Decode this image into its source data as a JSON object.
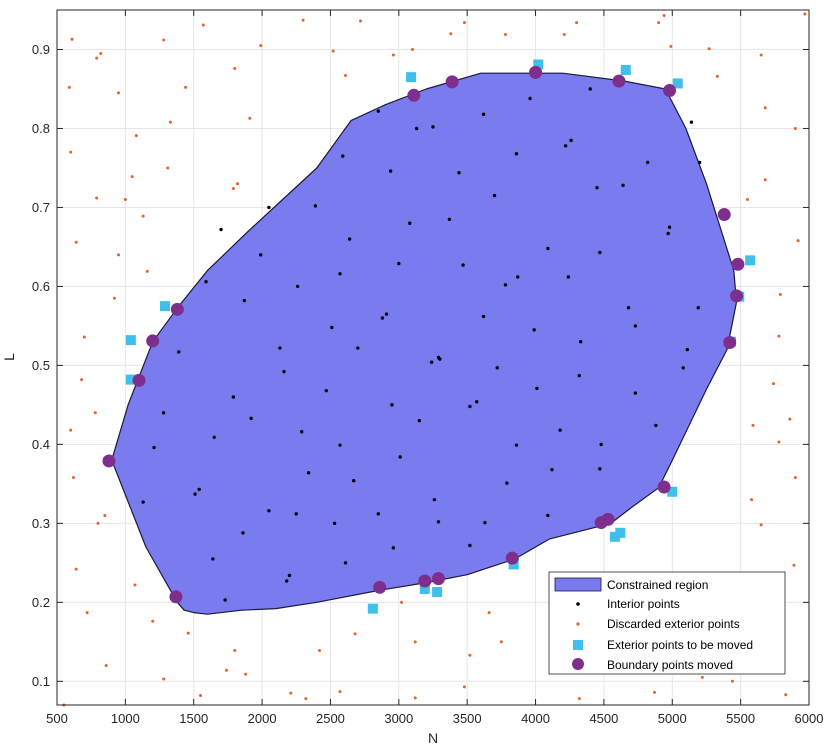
{
  "chart_data": {
    "type": "scatter",
    "title": "",
    "xlabel": "N",
    "ylabel": "L",
    "xlim": [
      500,
      6000
    ],
    "ylim": [
      0.07,
      0.95
    ],
    "xticks": [
      500,
      1000,
      1500,
      2000,
      2500,
      3000,
      3500,
      4000,
      4500,
      5000,
      5500,
      6000
    ],
    "yticks": [
      0.1,
      0.2,
      0.3,
      0.4,
      0.5,
      0.6,
      0.7,
      0.8,
      0.9
    ],
    "grid": true,
    "legend_position": "bottom-right",
    "legend": [
      "Constrained region",
      "Interior points",
      "Discarded exterior points",
      "Exterior points to be moved",
      "Boundary points moved"
    ],
    "colors": {
      "region_fill": "#7b7bf0",
      "region_edge": "#1a1a3a",
      "interior": "#000000",
      "discarded": "#e8602a",
      "exterior_moved": "#3fbfe9",
      "boundary": "#7e2f8e",
      "grid": "#e6e6e6",
      "axes": "#262626"
    },
    "region": [
      [
        1500,
        0.187
      ],
      [
        1430,
        0.19
      ],
      [
        1380,
        0.2
      ],
      [
        1150,
        0.27
      ],
      [
        900,
        0.38
      ],
      [
        1020,
        0.45
      ],
      [
        1200,
        0.53
      ],
      [
        1390,
        0.575
      ],
      [
        1600,
        0.62
      ],
      [
        1900,
        0.67
      ],
      [
        2150,
        0.71
      ],
      [
        2400,
        0.75
      ],
      [
        2650,
        0.81
      ],
      [
        2900,
        0.83
      ],
      [
        3200,
        0.85
      ],
      [
        3600,
        0.87
      ],
      [
        4000,
        0.87
      ],
      [
        4200,
        0.87
      ],
      [
        4650,
        0.86
      ],
      [
        4950,
        0.85
      ],
      [
        5100,
        0.8
      ],
      [
        5250,
        0.73
      ],
      [
        5450,
        0.62
      ],
      [
        5470,
        0.58
      ],
      [
        5400,
        0.52
      ],
      [
        5250,
        0.47
      ],
      [
        5000,
        0.38
      ],
      [
        4900,
        0.345
      ],
      [
        4700,
        0.32
      ],
      [
        4550,
        0.3
      ],
      [
        4100,
        0.28
      ],
      [
        3850,
        0.255
      ],
      [
        3500,
        0.235
      ],
      [
        3200,
        0.225
      ],
      [
        2850,
        0.215
      ],
      [
        2400,
        0.2
      ],
      [
        2100,
        0.192
      ],
      [
        1850,
        0.19
      ],
      [
        1600,
        0.185
      ]
    ],
    "interior_points": [
      [
        2850,
        0.822
      ],
      [
        3130,
        0.8
      ],
      [
        3250,
        0.802
      ],
      [
        2590,
        0.765
      ],
      [
        2940,
        0.746
      ],
      [
        3440,
        0.744
      ],
      [
        3620,
        0.818
      ],
      [
        3960,
        0.838
      ],
      [
        4220,
        0.778
      ],
      [
        4260,
        0.785
      ],
      [
        3860,
        0.768
      ],
      [
        2390,
        0.702
      ],
      [
        2050,
        0.7
      ],
      [
        3080,
        0.68
      ],
      [
        3370,
        0.685
      ],
      [
        3700,
        0.715
      ],
      [
        4450,
        0.725
      ],
      [
        4640,
        0.728
      ],
      [
        4820,
        0.757
      ],
      [
        5200,
        0.757
      ],
      [
        5140,
        0.808
      ],
      [
        4400,
        0.85
      ],
      [
        1700,
        0.672
      ],
      [
        2640,
        0.66
      ],
      [
        1990,
        0.64
      ],
      [
        4090,
        0.648
      ],
      [
        4470,
        0.643
      ],
      [
        4970,
        0.667
      ],
      [
        3000,
        0.629
      ],
      [
        3470,
        0.627
      ],
      [
        4240,
        0.612
      ],
      [
        3870,
        0.612
      ],
      [
        1590,
        0.606
      ],
      [
        2570,
        0.616
      ],
      [
        2260,
        0.6
      ],
      [
        1870,
        0.582
      ],
      [
        3780,
        0.602
      ],
      [
        4980,
        0.675
      ],
      [
        2880,
        0.56
      ],
      [
        2910,
        0.565
      ],
      [
        3620,
        0.562
      ],
      [
        4680,
        0.573
      ],
      [
        2510,
        0.548
      ],
      [
        5190,
        0.573
      ],
      [
        1390,
        0.517
      ],
      [
        2130,
        0.522
      ],
      [
        3300,
        0.508
      ],
      [
        3290,
        0.51
      ],
      [
        3240,
        0.504
      ],
      [
        3990,
        0.545
      ],
      [
        4330,
        0.53
      ],
      [
        4730,
        0.55
      ],
      [
        2700,
        0.522
      ],
      [
        5080,
        0.497
      ],
      [
        5110,
        0.52
      ],
      [
        2160,
        0.492
      ],
      [
        4320,
        0.487
      ],
      [
        3720,
        0.497
      ],
      [
        1790,
        0.46
      ],
      [
        2470,
        0.468
      ],
      [
        2950,
        0.45
      ],
      [
        3520,
        0.448
      ],
      [
        3570,
        0.454
      ],
      [
        4010,
        0.471
      ],
      [
        4730,
        0.465
      ],
      [
        1280,
        0.44
      ],
      [
        1920,
        0.433
      ],
      [
        4180,
        0.418
      ],
      [
        3150,
        0.43
      ],
      [
        1650,
        0.409
      ],
      [
        2290,
        0.416
      ],
      [
        2570,
        0.399
      ],
      [
        3010,
        0.384
      ],
      [
        3860,
        0.399
      ],
      [
        4480,
        0.4
      ],
      [
        4880,
        0.424
      ],
      [
        1210,
        0.396
      ],
      [
        2340,
        0.364
      ],
      [
        2670,
        0.354
      ],
      [
        3790,
        0.351
      ],
      [
        4120,
        0.368
      ],
      [
        4470,
        0.369
      ],
      [
        1510,
        0.337
      ],
      [
        1540,
        0.343
      ],
      [
        3260,
        0.33
      ],
      [
        1130,
        0.327
      ],
      [
        2050,
        0.316
      ],
      [
        2250,
        0.312
      ],
      [
        2850,
        0.312
      ],
      [
        3290,
        0.302
      ],
      [
        3630,
        0.301
      ],
      [
        4090,
        0.31
      ],
      [
        1860,
        0.288
      ],
      [
        2530,
        0.3
      ],
      [
        3520,
        0.272
      ],
      [
        1640,
        0.255
      ],
      [
        2610,
        0.25
      ],
      [
        2960,
        0.269
      ],
      [
        2180,
        0.227
      ],
      [
        2200,
        0.234
      ],
      [
        1730,
        0.203
      ]
    ],
    "discarded_points": [
      [
        610,
        0.913
      ],
      [
        590,
        0.852
      ],
      [
        600,
        0.77
      ],
      [
        790,
        0.889
      ],
      [
        820,
        0.895
      ],
      [
        950,
        0.845
      ],
      [
        1280,
        0.912
      ],
      [
        1570,
        0.931
      ],
      [
        1990,
        0.905
      ],
      [
        2300,
        0.937
      ],
      [
        2720,
        0.936
      ],
      [
        2520,
        0.898
      ],
      [
        2960,
        0.893
      ],
      [
        3380,
        0.92
      ],
      [
        3100,
        0.9
      ],
      [
        3780,
        0.919
      ],
      [
        3480,
        0.934
      ],
      [
        4210,
        0.919
      ],
      [
        4300,
        0.934
      ],
      [
        4900,
        0.934
      ],
      [
        4940,
        0.943
      ],
      [
        4990,
        0.904
      ],
      [
        5270,
        0.901
      ],
      [
        5650,
        0.893
      ],
      [
        5970,
        0.945
      ],
      [
        5330,
        0.866
      ],
      [
        5680,
        0.826
      ],
      [
        5900,
        0.8
      ],
      [
        1080,
        0.791
      ],
      [
        1330,
        0.808
      ],
      [
        1800,
        0.876
      ],
      [
        1910,
        0.813
      ],
      [
        2610,
        0.867
      ],
      [
        1440,
        0.852
      ],
      [
        1050,
        0.739
      ],
      [
        1820,
        0.73
      ],
      [
        1790,
        0.724
      ],
      [
        1310,
        0.75
      ],
      [
        790,
        0.712
      ],
      [
        1000,
        0.71
      ],
      [
        640,
        0.656
      ],
      [
        1130,
        0.689
      ],
      [
        950,
        0.64
      ],
      [
        1160,
        0.619
      ],
      [
        5550,
        0.71
      ],
      [
        5680,
        0.735
      ],
      [
        5920,
        0.658
      ],
      [
        5790,
        0.59
      ],
      [
        920,
        0.585
      ],
      [
        700,
        0.536
      ],
      [
        680,
        0.482
      ],
      [
        5780,
        0.537
      ],
      [
        5740,
        0.477
      ],
      [
        5860,
        0.432
      ],
      [
        600,
        0.418
      ],
      [
        780,
        0.44
      ],
      [
        5590,
        0.424
      ],
      [
        5780,
        0.403
      ],
      [
        620,
        0.358
      ],
      [
        5900,
        0.358
      ],
      [
        800,
        0.3
      ],
      [
        850,
        0.31
      ],
      [
        5580,
        0.33
      ],
      [
        640,
        0.242
      ],
      [
        1070,
        0.222
      ],
      [
        5650,
        0.298
      ],
      [
        5460,
        0.234
      ],
      [
        5620,
        0.224
      ],
      [
        5330,
        0.197
      ],
      [
        5890,
        0.247
      ],
      [
        720,
        0.187
      ],
      [
        1200,
        0.176
      ],
      [
        1460,
        0.161
      ],
      [
        1800,
        0.139
      ],
      [
        2420,
        0.139
      ],
      [
        2680,
        0.16
      ],
      [
        3120,
        0.15
      ],
      [
        3520,
        0.133
      ],
      [
        3750,
        0.15
      ],
      [
        4230,
        0.151
      ],
      [
        4470,
        0.137
      ],
      [
        5080,
        0.162
      ],
      [
        5660,
        0.125
      ],
      [
        860,
        0.12
      ],
      [
        1280,
        0.103
      ],
      [
        1740,
        0.114
      ],
      [
        1880,
        0.109
      ],
      [
        2210,
        0.085
      ],
      [
        2320,
        0.078
      ],
      [
        2570,
        0.087
      ],
      [
        3120,
        0.079
      ],
      [
        3480,
        0.093
      ],
      [
        4320,
        0.078
      ],
      [
        4870,
        0.086
      ],
      [
        5220,
        0.105
      ],
      [
        5440,
        0.1
      ],
      [
        5830,
        0.083
      ],
      [
        550,
        0.07
      ],
      [
        1550,
        0.082
      ],
      [
        4140,
        0.115
      ],
      [
        3020,
        0.2
      ],
      [
        3660,
        0.187
      ]
    ],
    "exterior_points_to_be_moved": [
      [
        3090,
        0.865
      ],
      [
        4020,
        0.881
      ],
      [
        4660,
        0.874
      ],
      [
        5040,
        0.857
      ],
      [
        5570,
        0.633
      ],
      [
        5490,
        0.587
      ],
      [
        5430,
        0.53
      ],
      [
        1040,
        0.532
      ],
      [
        1290,
        0.575
      ],
      [
        1040,
        0.482
      ],
      [
        5000,
        0.34
      ],
      [
        4580,
        0.283
      ],
      [
        4620,
        0.288
      ],
      [
        3840,
        0.248
      ],
      [
        3280,
        0.213
      ],
      [
        3190,
        0.217
      ],
      [
        2810,
        0.192
      ]
    ],
    "boundary_points_moved": [
      [
        3110,
        0.842
      ],
      [
        3390,
        0.859
      ],
      [
        4000,
        0.871
      ],
      [
        4610,
        0.86
      ],
      [
        4980,
        0.848
      ],
      [
        5380,
        0.691
      ],
      [
        5480,
        0.628
      ],
      [
        5470,
        0.588
      ],
      [
        5420,
        0.529
      ],
      [
        1380,
        0.571
      ],
      [
        1200,
        0.531
      ],
      [
        1100,
        0.481
      ],
      [
        880,
        0.379
      ],
      [
        4940,
        0.346
      ],
      [
        4530,
        0.305
      ],
      [
        4480,
        0.301
      ],
      [
        3830,
        0.256
      ],
      [
        3290,
        0.23
      ],
      [
        3190,
        0.227
      ],
      [
        2860,
        0.219
      ],
      [
        1370,
        0.207
      ]
    ]
  }
}
